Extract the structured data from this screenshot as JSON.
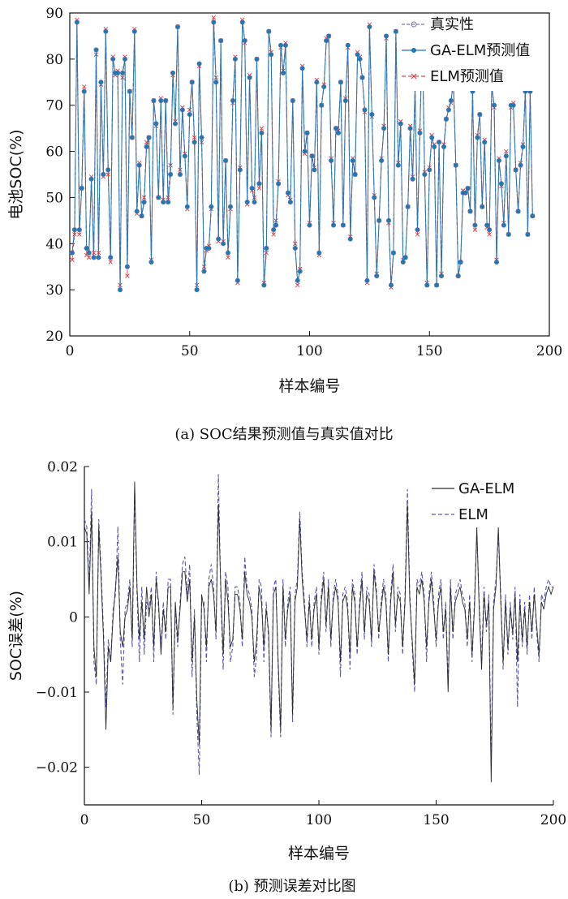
{
  "chart_data": [
    {
      "type": "line",
      "caption": "(a) SOC结果预测值与真实值对比",
      "xlabel": "样本编号",
      "ylabel": "电池SOC(%)",
      "xlim": [
        0,
        200
      ],
      "ylim": [
        20,
        90
      ],
      "xticks": [
        0,
        50,
        100,
        150,
        200
      ],
      "yticks": [
        20,
        30,
        40,
        50,
        60,
        70,
        80,
        90
      ],
      "legend_position": "top-right",
      "colors": {
        "true": "#7a7aa6",
        "ga_elm": "#1f77b4",
        "elm": "#e0474c"
      },
      "series": [
        {
          "name": "真实性",
          "key": "true",
          "values": [
            38,
            43,
            88,
            43,
            52,
            73,
            39,
            38,
            54,
            37,
            82,
            37,
            75,
            55,
            86,
            56,
            37,
            80,
            77,
            77,
            30,
            77,
            80,
            35,
            73,
            63,
            86,
            47,
            57,
            46,
            49,
            61,
            63,
            36,
            71,
            66,
            50,
            71,
            49,
            71,
            49,
            55,
            77,
            66,
            87,
            55,
            69,
            59,
            48,
            68,
            75,
            62,
            30,
            79,
            63,
            34,
            39,
            39,
            48,
            88,
            75,
            41,
            84,
            40,
            58,
            38,
            48,
            71,
            80,
            32,
            56,
            88,
            84,
            49,
            76,
            52,
            49,
            80,
            53,
            64,
            31,
            39,
            86,
            81,
            43,
            44,
            53,
            83,
            77,
            83,
            51,
            49,
            71,
            39,
            32,
            34,
            78,
            60,
            64,
            44,
            59,
            56,
            75,
            38,
            70,
            74,
            84,
            85,
            58,
            44,
            65,
            64,
            75,
            44,
            71,
            83,
            41,
            58,
            55,
            81,
            80,
            76,
            69,
            32,
            87,
            68,
            50,
            33,
            45,
            58,
            65,
            85,
            45,
            31,
            38,
            86,
            57,
            66,
            36,
            37,
            48,
            65,
            54,
            74,
            43,
            64,
            85,
            55,
            31,
            56,
            63,
            61,
            31,
            62,
            33,
            61,
            67,
            69,
            71,
            75,
            57,
            33,
            36,
            51,
            51,
            52,
            47,
            73,
            44,
            63,
            68,
            48,
            62,
            44,
            43,
            74,
            70,
            36,
            58,
            53,
            44,
            59,
            42,
            70,
            70,
            56,
            47,
            57,
            61,
            73,
            42,
            73,
            46
          ]
        },
        {
          "name": "GA-ELM预测值",
          "key": "ga_elm",
          "values": [
            38,
            43,
            88,
            43,
            52,
            73,
            39,
            38,
            54,
            37,
            82,
            37,
            75,
            55,
            86,
            56,
            37,
            80,
            77,
            77,
            30,
            77,
            80,
            35,
            73,
            63,
            86,
            47,
            57,
            46,
            49,
            61,
            63,
            36,
            71,
            66,
            50,
            71,
            49,
            71,
            49,
            55,
            77,
            66,
            87,
            55,
            69,
            59,
            48,
            68,
            75,
            62,
            30,
            79,
            63,
            34,
            39,
            39,
            48,
            88,
            75,
            41,
            84,
            40,
            58,
            38,
            48,
            71,
            80,
            32,
            56,
            88,
            84,
            49,
            76,
            52,
            49,
            80,
            53,
            64,
            31,
            39,
            86,
            81,
            43,
            44,
            53,
            83,
            77,
            83,
            51,
            49,
            71,
            39,
            32,
            34,
            78,
            60,
            64,
            44,
            59,
            56,
            75,
            38,
            70,
            74,
            84,
            85,
            58,
            44,
            65,
            64,
            75,
            44,
            71,
            83,
            41,
            58,
            55,
            81,
            80,
            76,
            69,
            32,
            87,
            68,
            50,
            33,
            45,
            58,
            65,
            85,
            45,
            31,
            38,
            86,
            57,
            66,
            36,
            37,
            48,
            65,
            54,
            74,
            43,
            64,
            85,
            55,
            31,
            56,
            63,
            61,
            31,
            62,
            33,
            61,
            67,
            69,
            71,
            75,
            57,
            33,
            36,
            51,
            51,
            52,
            47,
            73,
            44,
            63,
            68,
            48,
            62,
            44,
            43,
            74,
            70,
            36,
            58,
            53,
            44,
            59,
            42,
            70,
            70,
            56,
            47,
            57,
            61,
            73,
            42,
            73,
            46
          ]
        },
        {
          "name": "ELM预测值",
          "key": "elm",
          "values": [
            36.5,
            42,
            88.5,
            42,
            52,
            74,
            37.5,
            37,
            54.5,
            38,
            81,
            38,
            74.5,
            54.5,
            86.5,
            55,
            36,
            80.5,
            76.5,
            77.5,
            31,
            76,
            80.5,
            33,
            73,
            63,
            86.5,
            46.5,
            57.5,
            46,
            50,
            62,
            63,
            36.5,
            71,
            65.5,
            50,
            71.5,
            49.5,
            71,
            50,
            57,
            76.5,
            66.5,
            87,
            56,
            69.5,
            59.5,
            47.5,
            69,
            75,
            63,
            31,
            78.5,
            62,
            35,
            38.5,
            39.5,
            47.5,
            89,
            76,
            40.5,
            84,
            40.5,
            58,
            37,
            47.5,
            70.5,
            80.5,
            31.5,
            56.5,
            88.5,
            83.5,
            48.5,
            76.5,
            51.5,
            50,
            80,
            52,
            65,
            31.5,
            38,
            86,
            81.5,
            42,
            45,
            53.5,
            82.5,
            77.5,
            83.5,
            50.5,
            49.5,
            71,
            40,
            31,
            34.5,
            78.5,
            59.5,
            64,
            44.5,
            59,
            56.5,
            75.5,
            37.5,
            70,
            74.5,
            84.5,
            85,
            58.5,
            44.5,
            65,
            64.5,
            75,
            44,
            71.5,
            82.5,
            41.5,
            58.5,
            55,
            81.5,
            80.5,
            76,
            68.5,
            31.5,
            87.5,
            67.5,
            50.5,
            33.5,
            45,
            58.5,
            65.5,
            84.5,
            44.5,
            30.5,
            38,
            86,
            57.5,
            66.5,
            36.5,
            37,
            48,
            65.5,
            54.5,
            74,
            42,
            64.5,
            85.5,
            55.5,
            31.5,
            56.5,
            63.5,
            61.5,
            31,
            62,
            33.5,
            61.5,
            67,
            69.5,
            70.5,
            75.5,
            57,
            33,
            36,
            51.5,
            51,
            52,
            47,
            73.5,
            43,
            63.5,
            68,
            48,
            62.5,
            43.5,
            42,
            74.5,
            69.5,
            36.5,
            58.5,
            52.5,
            44.5,
            60,
            42,
            69.5,
            70.5,
            56,
            47,
            57.5,
            61.5,
            73.5,
            42,
            73,
            46
          ]
        }
      ]
    },
    {
      "type": "line",
      "caption": "(b) 预测误差对比图",
      "xlabel": "样本编号",
      "ylabel": "SOC误差(%)",
      "xlim": [
        0,
        200
      ],
      "ylim": [
        -0.025,
        0.02
      ],
      "xticks": [
        0,
        50,
        100,
        150,
        200
      ],
      "yticks": [
        -0.02,
        -0.01,
        0,
        0.01,
        0.02
      ],
      "ytick_labels": [
        "−0.02",
        "−0.01",
        "0",
        "0.01",
        "0.02"
      ],
      "legend_position": "top-right",
      "colors": {
        "ga_elm": "#2b2b2b",
        "elm": "#5a5ab0"
      },
      "series": [
        {
          "name": "GA-ELM",
          "key": "ga_elm",
          "style": "solid",
          "values": [
            0.012,
            0.011,
            0.003,
            0.014,
            -0.004,
            -0.008,
            0.012,
            0.005,
            -0.003,
            -0.015,
            -0.004,
            -0.006,
            0,
            0.004,
            0.008,
            -0.002,
            -0.004,
            0,
            0.001,
            0.004,
            -0.003,
            0.018,
            0.004,
            -0.003,
            0.002,
            -0.003,
            0.004,
            0,
            0.003,
            -0.004,
            0.005,
            0.002,
            -0.005,
            0.001,
            -0.002,
            0.004,
            0.004,
            -0.012,
            0.002,
            -0.003,
            0.001,
            0.006,
            0.006,
            0.002,
            0.005,
            -0.006,
            0,
            -0.011,
            -0.017,
            0.003,
            0.001,
            -0.004,
            0.004,
            0.005,
            0.003,
            -0.002,
            0.015,
            0.004,
            -0.005,
            0.005,
            0.002,
            -0.004,
            -0.003,
            0.003,
            0.003,
            0.001,
            -0.003,
            0.006,
            0.003,
            0.002,
            0,
            -0.006,
            -0.003,
            0.004,
            0.002,
            -0.004,
            0.001,
            -0.002,
            -0.015,
            0.003,
            0.004,
            -0.006,
            -0.015,
            0.004,
            -0.003,
            0.001,
            0.003,
            -0.013,
            0.002,
            0.004,
            0.013,
            0.005,
            0.001,
            -0.003,
            0.002,
            -0.003,
            0.001,
            0.003,
            -0.004,
            0.002,
            0.005,
            -0.001,
            0.004,
            -0.003,
            0.002,
            0.004,
            0.002,
            -0.006,
            0.002,
            0.003,
            0.001,
            -0.005,
            0.004,
            0.002,
            -0.004,
            0.001,
            0.005,
            -0.002,
            0.003,
            0.002,
            -0.003,
            0.006,
            0.003,
            -0.002,
            0.001,
            0.004,
            0.002,
            -0.005,
            0.002,
            0.006,
            -0.001,
            0.003,
            0.002,
            -0.004,
            0.002,
            0.015,
            0.002,
            -0.003,
            -0.009,
            0.004,
            0.003,
            0.005,
            0.002,
            -0.004,
            0.002,
            0.005,
            0.001,
            -0.003,
            0.002,
            0.004,
            -0.002,
            0.001,
            -0.01,
            0.004,
            -0.002,
            0.002,
            0.003,
            0.004,
            0.002,
            0.001,
            -0.003,
            0.002,
            -0.005,
            0.001,
            0.012,
            0.001,
            -0.007,
            0.003,
            -0.001,
            0.002,
            -0.022,
            0.001,
            0.004,
            0.012,
            0.002,
            -0.006,
            0.002,
            -0.004,
            0.001,
            -0.002,
            0.003,
            -0.006,
            0.002,
            -0.003,
            0.001,
            -0.004,
            0.002,
            -0.002,
            0.003,
            -0.001,
            -0.005,
            0.002,
            0.001,
            0.003,
            0.004,
            0.003,
            0.004
          ]
        },
        {
          "name": "ELM",
          "key": "elm",
          "style": "dashed",
          "values": [
            0.013,
            0.012,
            0.004,
            0.017,
            -0.006,
            -0.009,
            0.013,
            0.006,
            -0.002,
            -0.012,
            -0.003,
            -0.006,
            0.001,
            0.003,
            0.012,
            -0.003,
            -0.009,
            0.001,
            0.002,
            0.005,
            -0.004,
            0.017,
            0.003,
            -0.006,
            0.004,
            -0.005,
            0.002,
            0.001,
            0.004,
            -0.006,
            0.006,
            0.001,
            -0.004,
            0.002,
            -0.003,
            0.005,
            0.005,
            -0.013,
            0.001,
            -0.004,
            0.002,
            0.007,
            0.008,
            0.003,
            0.007,
            -0.008,
            0.001,
            -0.013,
            -0.021,
            0.002,
            0.002,
            -0.006,
            0.005,
            0.007,
            0.004,
            -0.003,
            0.019,
            0.003,
            -0.007,
            0.006,
            0.004,
            -0.006,
            -0.004,
            0.004,
            0.004,
            0.002,
            -0.004,
            0.008,
            0.004,
            0.003,
            0.001,
            -0.008,
            -0.005,
            0.005,
            0.004,
            -0.006,
            0.002,
            -0.003,
            -0.016,
            0.004,
            0.005,
            -0.007,
            -0.016,
            0.005,
            -0.004,
            0.002,
            0.004,
            -0.014,
            0.003,
            0.005,
            0.014,
            0.006,
            0.002,
            -0.004,
            0.003,
            -0.004,
            0.002,
            0.004,
            -0.005,
            0.003,
            0.006,
            -0.002,
            0.005,
            -0.004,
            0.003,
            0.005,
            0.003,
            -0.008,
            0.003,
            0.004,
            0.002,
            -0.007,
            0.005,
            0.003,
            -0.005,
            0.002,
            0.006,
            -0.003,
            0.004,
            0.003,
            -0.004,
            0.007,
            0.004,
            -0.003,
            0.002,
            0.005,
            0.003,
            -0.006,
            0.003,
            0.007,
            -0.002,
            0.004,
            0.003,
            -0.005,
            0.003,
            0.017,
            0.003,
            -0.004,
            -0.01,
            0.005,
            0.004,
            0.006,
            0.003,
            -0.006,
            0.003,
            0.006,
            0.002,
            -0.004,
            0.003,
            0.005,
            -0.003,
            0.002,
            -0.009,
            0.005,
            -0.003,
            0.003,
            0.004,
            0.005,
            0.003,
            0.002,
            -0.004,
            0.003,
            -0.006,
            0.002,
            0.011,
            0.002,
            -0.006,
            0.004,
            -0.002,
            0.003,
            -0.02,
            0.002,
            0.005,
            0.011,
            0.003,
            -0.007,
            0.003,
            -0.005,
            0.002,
            -0.003,
            0.004,
            -0.012,
            0.003,
            -0.004,
            0.002,
            -0.005,
            0.003,
            -0.003,
            0.004,
            -0.002,
            -0.006,
            0.003,
            0.002,
            0.004,
            0.005,
            0.004,
            0.004
          ]
        }
      ]
    }
  ]
}
